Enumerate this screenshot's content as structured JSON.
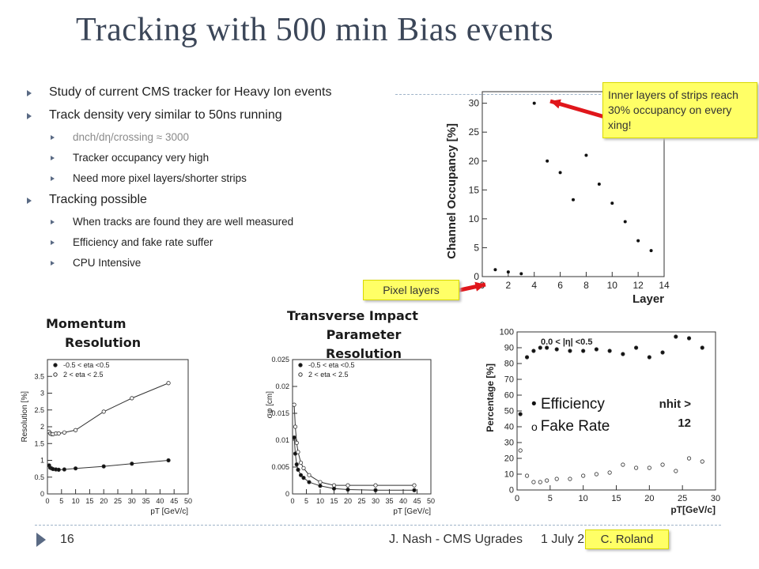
{
  "title": "Tracking with 500 min Bias events",
  "bullets": [
    {
      "level": 1,
      "text": "Study of current CMS tracker for Heavy Ion events"
    },
    {
      "level": 1,
      "text": "Track density very similar to 50ns running"
    },
    {
      "level": 2,
      "text": "dnch/dη/crossing ≈ 3000",
      "muted": true
    },
    {
      "level": 2,
      "text": "Tracker occupancy very high"
    },
    {
      "level": 2,
      "text": "Need more pixel layers/shorter strips"
    },
    {
      "level": 1,
      "text": "Tracking possible"
    },
    {
      "level": 2,
      "text": "When tracks are found they are well measured"
    },
    {
      "level": 2,
      "text": "Efficiency and fake rate suffer"
    },
    {
      "level": 2,
      "text": "CPU Intensive"
    }
  ],
  "callouts": {
    "strips": "Inner layers of strips reach 30% occupancy on every xing!",
    "pixel": "Pixel layers",
    "credit": "C. Roland"
  },
  "headings": {
    "momentum_l1": "Momentum",
    "momentum_l2": "Resolution",
    "impact_l1": "Transverse Impact",
    "impact_l2": "Parameter",
    "impact_l3": "Resolution"
  },
  "eff_legend": {
    "efficiency": "Efficiency",
    "fake": "Fake Rate",
    "nhit_l1": "nhit >",
    "nhit_l2": "12"
  },
  "footer": {
    "page": "16",
    "author": "J. Nash - CMS Ugrades",
    "date": "1 July 2"
  },
  "chart_data": [
    {
      "id": "occupancy",
      "type": "scatter",
      "xlabel": "Layer",
      "ylabel": "Channel Occupancy [%]",
      "xlim": [
        0,
        14
      ],
      "ylim": [
        0,
        32
      ],
      "xticks": [
        0,
        2,
        4,
        6,
        8,
        10,
        12,
        14
      ],
      "yticks": [
        0,
        5,
        10,
        15,
        20,
        25,
        30
      ],
      "x": [
        1,
        2,
        3,
        4,
        5,
        6,
        7,
        8,
        9,
        10,
        11,
        12,
        13
      ],
      "y": [
        1.2,
        0.8,
        0.5,
        30,
        20,
        18,
        13.3,
        21,
        16,
        12.7,
        9.5,
        6.2,
        4.5
      ]
    },
    {
      "id": "momentum",
      "type": "line",
      "xlabel": "pT [GeV/c]",
      "ylabel": "Resolution [%]",
      "xlim": [
        0,
        50
      ],
      "ylim": [
        0,
        4
      ],
      "xticks": [
        0,
        5,
        10,
        15,
        20,
        25,
        30,
        35,
        40,
        45,
        50
      ],
      "yticks": [
        0,
        0.5,
        1,
        1.5,
        2,
        2.5,
        3,
        3.5
      ],
      "series": [
        {
          "name": "-0.5 < eta <0.5",
          "marker": "filled",
          "x": [
            0.6,
            1,
            1.5,
            2,
            3,
            4,
            6,
            10,
            20,
            30,
            43
          ],
          "y": [
            0.85,
            0.78,
            0.76,
            0.74,
            0.73,
            0.72,
            0.73,
            0.76,
            0.82,
            0.9,
            1.0
          ]
        },
        {
          "name": "2 < eta < 2.5",
          "marker": "open",
          "x": [
            0.6,
            1,
            1.5,
            2,
            3,
            4,
            6,
            10,
            20,
            30,
            43
          ],
          "y": [
            1.85,
            1.8,
            1.78,
            1.78,
            1.8,
            1.8,
            1.83,
            1.9,
            2.45,
            2.85,
            3.3
          ]
        }
      ]
    },
    {
      "id": "impact",
      "type": "line",
      "xlabel": "pT [GeV/c]",
      "ylabel": "σφ [cm]",
      "xlim": [
        0,
        50
      ],
      "ylim": [
        0,
        0.025
      ],
      "xticks": [
        0,
        5,
        10,
        15,
        20,
        25,
        30,
        35,
        40,
        45,
        50
      ],
      "yticks": [
        0,
        0.005,
        0.01,
        0.015,
        0.02,
        0.025
      ],
      "series": [
        {
          "name": "-0.5 < eta <0.5",
          "marker": "filled",
          "x": [
            0.6,
            1,
            1.5,
            2,
            3,
            4,
            6,
            10,
            15,
            20,
            30,
            44
          ],
          "y": [
            0.0105,
            0.0075,
            0.0055,
            0.0045,
            0.0035,
            0.003,
            0.0022,
            0.0015,
            0.001,
            0.0008,
            0.0007,
            0.0007
          ]
        },
        {
          "name": "2 < eta < 2.5",
          "marker": "open",
          "x": [
            0.6,
            1,
            1.5,
            2,
            3,
            4,
            6,
            10,
            15,
            20,
            30,
            44
          ],
          "y": [
            0.0166,
            0.0125,
            0.0095,
            0.0078,
            0.0058,
            0.0048,
            0.0035,
            0.0022,
            0.0016,
            0.0016,
            0.0016,
            0.0016
          ]
        }
      ]
    },
    {
      "id": "efficiency",
      "type": "scatter",
      "xlabel": "pT[GeV/c]",
      "ylabel": "Percentage [%]",
      "annotation": "0.0 < |η| <0.5",
      "xlim": [
        0,
        30
      ],
      "ylim": [
        0,
        100
      ],
      "xticks": [
        0,
        5,
        10,
        15,
        20,
        25,
        30
      ],
      "yticks": [
        0,
        10,
        20,
        30,
        40,
        50,
        60,
        70,
        80,
        90,
        100
      ],
      "series": [
        {
          "name": "Efficiency",
          "marker": "filled",
          "x": [
            0.5,
            1.5,
            2.5,
            3.5,
            4.5,
            6,
            8,
            10,
            12,
            14,
            16,
            18,
            20,
            22,
            24,
            26,
            28
          ],
          "y": [
            48,
            84,
            88,
            90,
            90,
            89,
            88,
            88,
            89,
            88,
            86,
            90,
            84,
            87,
            97,
            96,
            90
          ]
        },
        {
          "name": "Fake Rate",
          "marker": "open",
          "x": [
            0.5,
            1.5,
            2.5,
            3.5,
            4.5,
            6,
            8,
            10,
            12,
            14,
            16,
            18,
            20,
            22,
            24,
            26,
            28
          ],
          "y": [
            25,
            9,
            5,
            5,
            6,
            7,
            7,
            9,
            10,
            11,
            16,
            14,
            14,
            16,
            12,
            20,
            18
          ]
        }
      ]
    }
  ]
}
